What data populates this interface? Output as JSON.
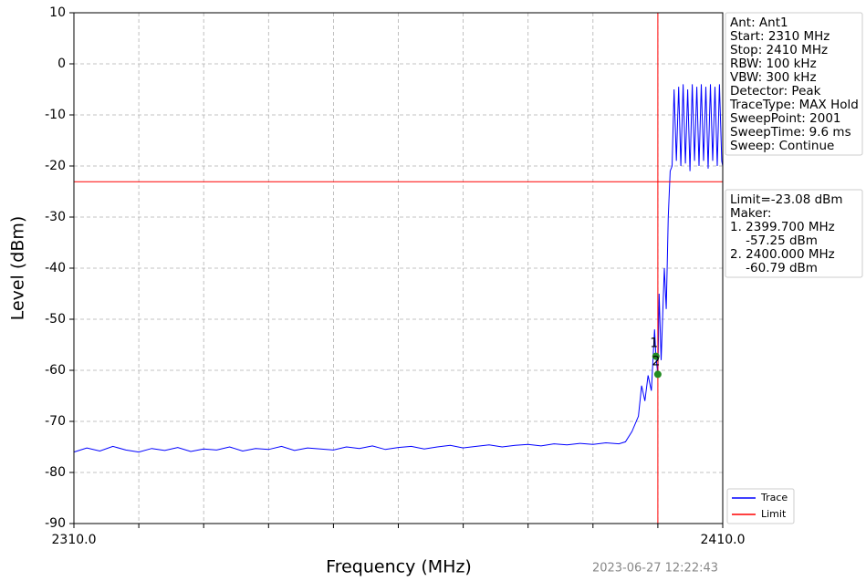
{
  "chart_data": {
    "type": "line",
    "x_label": "Frequency (MHz)",
    "y_label": "Level (dBm)",
    "xlim": [
      2310,
      2410
    ],
    "ylim": [
      -90,
      10
    ],
    "xticks": [
      {
        "value": 2310,
        "label": "2310.0"
      },
      {
        "value": 2320,
        "label": null
      },
      {
        "value": 2330,
        "label": null
      },
      {
        "value": 2340,
        "label": null
      },
      {
        "value": 2350,
        "label": null
      },
      {
        "value": 2360,
        "label": null
      },
      {
        "value": 2370,
        "label": null
      },
      {
        "value": 2380,
        "label": null
      },
      {
        "value": 2390,
        "label": null
      },
      {
        "value": 2400,
        "label": null
      },
      {
        "value": 2410,
        "label": "2410.0"
      }
    ],
    "yticks": [
      -90,
      -80,
      -70,
      -60,
      -50,
      -40,
      -30,
      -20,
      -10,
      0,
      10
    ],
    "grid": true,
    "legend": "lower right",
    "series": [
      {
        "name": "Trace",
        "color": "#0000ff",
        "x": [
          2310,
          2312,
          2314,
          2316,
          2318,
          2320,
          2322,
          2324,
          2326,
          2328,
          2330,
          2332,
          2334,
          2336,
          2338,
          2340,
          2342,
          2344,
          2346,
          2348,
          2350,
          2352,
          2354,
          2356,
          2358,
          2360,
          2362,
          2364,
          2366,
          2368,
          2370,
          2372,
          2374,
          2376,
          2378,
          2380,
          2382,
          2384,
          2386,
          2388,
          2390,
          2392,
          2394,
          2395,
          2396,
          2397,
          2397.5,
          2398,
          2398.5,
          2399,
          2399.5,
          2399.7,
          2400,
          2400.2,
          2400.5,
          2401,
          2401.3,
          2401.6,
          2401.9,
          2402.2,
          2402.5,
          2402.85,
          2403.2,
          2403.55,
          2403.9,
          2404.25,
          2404.6,
          2404.95,
          2405.3,
          2405.65,
          2406,
          2406.35,
          2406.7,
          2407.05,
          2407.4,
          2407.75,
          2408.1,
          2408.45,
          2408.8,
          2409.15,
          2409.5,
          2409.85,
          2410
        ],
        "values": [
          -76,
          -75.2,
          -75.8,
          -74.9,
          -75.6,
          -76,
          -75.3,
          -75.7,
          -75.1,
          -75.9,
          -75.4,
          -75.6,
          -75,
          -75.8,
          -75.3,
          -75.5,
          -74.9,
          -75.7,
          -75.2,
          -75.4,
          -75.6,
          -75,
          -75.3,
          -74.8,
          -75.5,
          -75.1,
          -74.9,
          -75.4,
          -75,
          -74.7,
          -75.2,
          -74.9,
          -74.6,
          -75,
          -74.7,
          -74.5,
          -74.8,
          -74.4,
          -74.6,
          -74.3,
          -74.5,
          -74.2,
          -74.4,
          -74,
          -72,
          -69,
          -63,
          -66,
          -61,
          -64,
          -52,
          -57.25,
          -60.79,
          -45,
          -58,
          -40,
          -48,
          -30,
          -21,
          -20,
          -5,
          -19,
          -4.5,
          -20,
          -4,
          -19.5,
          -5,
          -21,
          -4,
          -19,
          -4.5,
          -20,
          -4,
          -19,
          -4.5,
          -20.5,
          -4,
          -19,
          -4.5,
          -20,
          -4,
          -19,
          -20
        ]
      }
    ],
    "limit": {
      "name": "Limit",
      "value": -23.08,
      "color": "#ff0000"
    },
    "marker_line_x": 2400,
    "marker_color": "#228b22",
    "markers": [
      {
        "label": "1",
        "x": 2399.7,
        "y": -57.25
      },
      {
        "label": "2",
        "x": 2400,
        "y": -60.79
      }
    ],
    "info_lines": [
      "Ant: Ant1",
      "Start: 2310 MHz",
      "Stop: 2410 MHz",
      "RBW: 100 kHz",
      "VBW: 300 kHz",
      "Detector: Peak",
      "TraceType: MAX Hold",
      "SweepPoint: 2001",
      "SweepTime: 9.6 ms",
      "Sweep: Continue"
    ],
    "limit_lines": [
      "Limit=-23.08 dBm",
      "Maker:",
      "1. 2399.700 MHz",
      "    -57.25 dBm",
      "2. 2400.000 MHz",
      "    -60.79 dBm"
    ],
    "timestamp": "2023-06-27 12:22:43"
  }
}
